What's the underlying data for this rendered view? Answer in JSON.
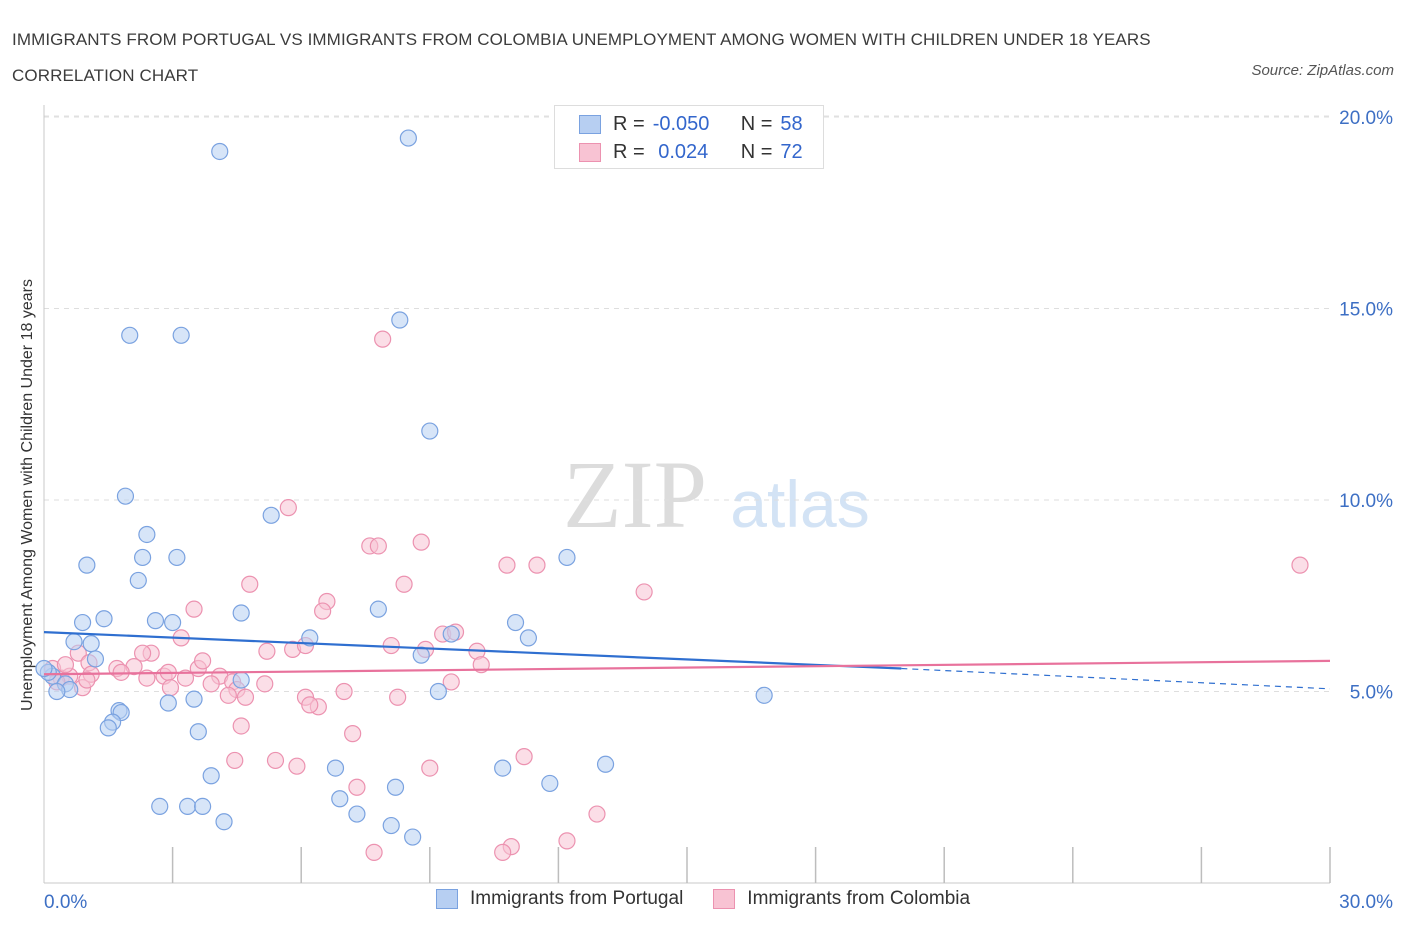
{
  "header": {
    "title": "IMMIGRANTS FROM PORTUGAL VS IMMIGRANTS FROM COLOMBIA UNEMPLOYMENT AMONG WOMEN WITH CHILDREN UNDER 18 YEARS CORRELATION CHART",
    "source": "Source: ZipAtlas.com"
  },
  "watermark": {
    "zip": "ZIP",
    "atlas": "atlas"
  },
  "legend": {
    "r_label": "R =",
    "n_label": "N =",
    "rows": [
      {
        "name": "Immigrants from Portugal",
        "r": "-0.050",
        "n": "58"
      },
      {
        "name": "Immigrants from Colombia",
        "r": " 0.024",
        "n": "72"
      }
    ]
  },
  "chart_data": {
    "type": "scatter",
    "xlabel": "",
    "ylabel": "Unemployment Among Women with Children Under 18 years",
    "xlim": [
      0,
      30
    ],
    "ylim": [
      0,
      20
    ],
    "x_tick_labels": [
      "0.0%",
      "30.0%"
    ],
    "y_ticks": [
      5,
      10,
      15,
      20
    ],
    "y_tick_labels": [
      "5.0%",
      "10.0%",
      "15.0%",
      "20.0%"
    ],
    "grid": true,
    "colors": {
      "portugal_fill": "#b7cff2",
      "portugal_stroke": "#7aa2e0",
      "portugal_line": "#2f6fd0",
      "colombia_fill": "#f8c3d3",
      "colombia_stroke": "#ec92b0",
      "colombia_line": "#e8729c",
      "tick_label": "#3d6fc4"
    },
    "series": [
      {
        "name": "Immigrants from Portugal",
        "trend": {
          "x0": 0,
          "y0": 6.55,
          "x1": 20,
          "y1": 5.6,
          "dash_to_x": 30,
          "dash_to_y": 5.07
        },
        "points": [
          [
            4.1,
            19.1
          ],
          [
            8.5,
            19.45
          ],
          [
            2.0,
            14.3
          ],
          [
            3.2,
            14.3
          ],
          [
            8.3,
            14.7
          ],
          [
            9.0,
            11.8
          ],
          [
            1.9,
            10.1
          ],
          [
            2.4,
            9.1
          ],
          [
            5.3,
            9.6
          ],
          [
            12.2,
            8.5
          ],
          [
            1.0,
            8.3
          ],
          [
            2.3,
            8.5
          ],
          [
            3.1,
            8.5
          ],
          [
            2.2,
            7.9
          ],
          [
            1.4,
            6.9
          ],
          [
            0.9,
            6.8
          ],
          [
            2.6,
            6.85
          ],
          [
            3.0,
            6.8
          ],
          [
            4.6,
            7.05
          ],
          [
            7.8,
            7.15
          ],
          [
            11.0,
            6.8
          ],
          [
            6.2,
            6.4
          ],
          [
            0.7,
            6.3
          ],
          [
            1.1,
            6.25
          ],
          [
            9.5,
            6.5
          ],
          [
            11.3,
            6.4
          ],
          [
            1.2,
            5.85
          ],
          [
            8.8,
            5.95
          ],
          [
            0.2,
            5.4
          ],
          [
            0.5,
            5.2
          ],
          [
            0.6,
            5.05
          ],
          [
            0.3,
            5.0
          ],
          [
            4.6,
            5.3
          ],
          [
            0.1,
            5.5
          ],
          [
            3.5,
            4.8
          ],
          [
            2.9,
            4.7
          ],
          [
            9.2,
            5.0
          ],
          [
            16.8,
            4.9
          ],
          [
            1.75,
            4.5
          ],
          [
            1.8,
            4.45
          ],
          [
            1.6,
            4.2
          ],
          [
            1.5,
            4.05
          ],
          [
            3.6,
            3.95
          ],
          [
            3.9,
            2.8
          ],
          [
            6.8,
            3.0
          ],
          [
            10.7,
            3.0
          ],
          [
            13.1,
            3.1
          ],
          [
            11.8,
            2.6
          ],
          [
            8.2,
            2.5
          ],
          [
            6.9,
            2.2
          ],
          [
            2.7,
            2.0
          ],
          [
            3.35,
            2.0
          ],
          [
            3.7,
            2.0
          ],
          [
            7.3,
            1.8
          ],
          [
            4.2,
            1.6
          ],
          [
            8.1,
            1.5
          ],
          [
            8.6,
            1.2
          ],
          [
            0.0,
            5.6
          ]
        ]
      },
      {
        "name": "Immigrants from Colombia",
        "trend": {
          "x0": 0,
          "y0": 5.45,
          "x1": 30,
          "y1": 5.8
        },
        "points": [
          [
            7.9,
            14.2
          ],
          [
            5.7,
            9.8
          ],
          [
            7.6,
            8.8
          ],
          [
            7.8,
            8.8
          ],
          [
            8.8,
            8.9
          ],
          [
            10.8,
            8.3
          ],
          [
            29.3,
            8.3
          ],
          [
            4.8,
            7.8
          ],
          [
            8.4,
            7.8
          ],
          [
            14.0,
            7.6
          ],
          [
            6.6,
            7.35
          ],
          [
            3.5,
            7.15
          ],
          [
            6.5,
            7.1
          ],
          [
            3.2,
            6.4
          ],
          [
            9.3,
            6.5
          ],
          [
            9.6,
            6.55
          ],
          [
            2.5,
            6.0
          ],
          [
            2.3,
            6.0
          ],
          [
            0.8,
            6.0
          ],
          [
            5.2,
            6.05
          ],
          [
            5.8,
            6.1
          ],
          [
            6.1,
            6.2
          ],
          [
            8.1,
            6.2
          ],
          [
            8.9,
            6.1
          ],
          [
            10.1,
            6.05
          ],
          [
            1.05,
            5.75
          ],
          [
            1.7,
            5.6
          ],
          [
            2.1,
            5.65
          ],
          [
            2.4,
            5.35
          ],
          [
            1.8,
            5.5
          ],
          [
            3.3,
            5.35
          ],
          [
            3.6,
            5.6
          ],
          [
            3.7,
            5.8
          ],
          [
            4.1,
            5.4
          ],
          [
            4.4,
            5.25
          ],
          [
            2.8,
            5.4
          ],
          [
            2.9,
            5.5
          ],
          [
            0.4,
            5.35
          ],
          [
            0.6,
            5.4
          ],
          [
            1.1,
            5.45
          ],
          [
            10.2,
            5.7
          ],
          [
            0.2,
            5.6
          ],
          [
            0.3,
            5.25
          ],
          [
            0.9,
            5.1
          ],
          [
            2.95,
            5.1
          ],
          [
            3.9,
            5.2
          ],
          [
            4.5,
            5.05
          ],
          [
            5.15,
            5.2
          ],
          [
            9.5,
            5.25
          ],
          [
            7.0,
            5.0
          ],
          [
            6.1,
            4.85
          ],
          [
            4.3,
            4.9
          ],
          [
            4.7,
            4.85
          ],
          [
            8.25,
            4.85
          ],
          [
            6.4,
            4.6
          ],
          [
            6.2,
            4.65
          ],
          [
            4.6,
            4.1
          ],
          [
            7.2,
            3.9
          ],
          [
            4.45,
            3.2
          ],
          [
            5.4,
            3.2
          ],
          [
            5.9,
            3.05
          ],
          [
            9.0,
            3.0
          ],
          [
            11.2,
            3.3
          ],
          [
            7.3,
            2.5
          ],
          [
            12.9,
            1.8
          ],
          [
            12.2,
            1.1
          ],
          [
            10.9,
            0.95
          ],
          [
            10.7,
            0.8
          ],
          [
            7.7,
            0.8
          ],
          [
            1.0,
            5.3
          ],
          [
            0.5,
            5.7
          ],
          [
            11.5,
            8.3
          ]
        ]
      }
    ]
  }
}
